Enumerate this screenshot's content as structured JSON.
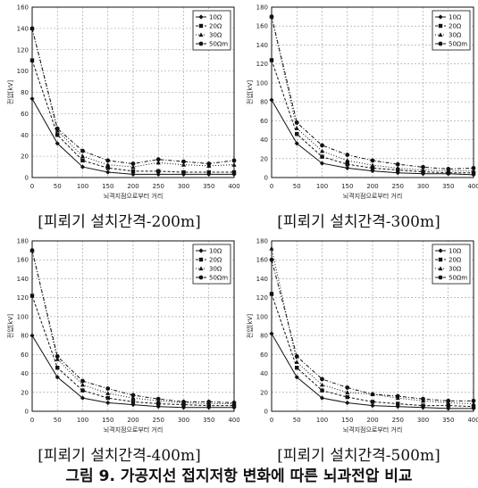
{
  "figure_caption": "그림 9. 가공지선 접지저항 변화에 따른 뇌과전압 비교",
  "chart_data": [
    {
      "type": "line",
      "title": "[피뢰기 설치간격-200m]",
      "xlabel": "뇌격지점으로부터 거리",
      "ylabel": "전압[kV]",
      "x": [
        0,
        50,
        100,
        150,
        200,
        250,
        300,
        350,
        400
      ],
      "xlim": [
        0,
        400
      ],
      "ylim": [
        0,
        160
      ],
      "yticks": [
        0,
        20,
        40,
        60,
        80,
        100,
        120,
        140,
        160
      ],
      "grid": true,
      "legend_position": "top-right",
      "series": [
        {
          "name": "10Ω",
          "values": [
            74,
            32,
            10,
            5,
            3,
            3,
            3,
            3,
            3
          ]
        },
        {
          "name": "20Ω",
          "values": [
            110,
            40,
            16,
            9,
            6,
            6,
            5,
            5,
            5
          ]
        },
        {
          "name": "30Ω",
          "values": [
            140,
            44,
            20,
            12,
            10,
            14,
            12,
            11,
            12
          ]
        },
        {
          "name": "50Ωm",
          "values": [
            140,
            46,
            25,
            16,
            13,
            17,
            15,
            13,
            16
          ]
        }
      ]
    },
    {
      "type": "line",
      "title": "[피뢰기 설치간격-300m]",
      "xlabel": "뇌격지점으로부터 거리",
      "ylabel": "전압[kV]",
      "x": [
        0,
        50,
        100,
        150,
        200,
        250,
        300,
        350,
        400
      ],
      "xlim": [
        0,
        400
      ],
      "ylim": [
        0,
        180
      ],
      "yticks": [
        0,
        20,
        40,
        60,
        80,
        100,
        120,
        140,
        160,
        180
      ],
      "grid": true,
      "legend_position": "top-right",
      "series": [
        {
          "name": "10Ω",
          "values": [
            82,
            36,
            15,
            10,
            7,
            5,
            4,
            4,
            3
          ]
        },
        {
          "name": "20Ω",
          "values": [
            124,
            46,
            22,
            14,
            10,
            8,
            6,
            5,
            5
          ]
        },
        {
          "name": "30Ω",
          "values": [
            170,
            52,
            28,
            18,
            13,
            10,
            8,
            7,
            7
          ]
        },
        {
          "name": "50Ωm",
          "values": [
            170,
            58,
            34,
            24,
            18,
            14,
            11,
            9,
            10
          ]
        }
      ]
    },
    {
      "type": "line",
      "title": "[피뢰기 설치간격-400m]",
      "xlabel": "뇌격지점으로부터 거리",
      "ylabel": "전압[kV]",
      "x": [
        0,
        50,
        100,
        150,
        200,
        250,
        300,
        350,
        400
      ],
      "xlim": [
        0,
        400
      ],
      "ylim": [
        0,
        180
      ],
      "yticks": [
        0,
        20,
        40,
        60,
        80,
        100,
        120,
        140,
        160,
        180
      ],
      "grid": true,
      "legend_position": "top-right",
      "series": [
        {
          "name": "10Ω",
          "values": [
            80,
            36,
            14,
            9,
            7,
            5,
            4,
            4,
            4
          ]
        },
        {
          "name": "20Ω",
          "values": [
            122,
            46,
            22,
            14,
            10,
            8,
            7,
            6,
            6
          ]
        },
        {
          "name": "30Ω",
          "values": [
            170,
            55,
            28,
            19,
            14,
            11,
            9,
            8,
            8
          ]
        },
        {
          "name": "50Ωm",
          "values": [
            170,
            58,
            32,
            24,
            17,
            13,
            10,
            10,
            9
          ]
        }
      ]
    },
    {
      "type": "line",
      "title": "[피뢰기 설치간격-500m]",
      "xlabel": "뇌격지점으로부터 거리",
      "ylabel": "전압[kV]",
      "x": [
        0,
        50,
        100,
        150,
        200,
        250,
        300,
        350,
        400
      ],
      "xlim": [
        0,
        400
      ],
      "ylim": [
        0,
        180
      ],
      "yticks": [
        0,
        20,
        40,
        60,
        80,
        100,
        120,
        140,
        160,
        180
      ],
      "grid": true,
      "legend_position": "top-right",
      "series": [
        {
          "name": "10Ω",
          "values": [
            82,
            36,
            14,
            9,
            6,
            5,
            4,
            3,
            3
          ]
        },
        {
          "name": "20Ω",
          "values": [
            124,
            46,
            22,
            15,
            10,
            8,
            6,
            6,
            5
          ]
        },
        {
          "name": "30Ω",
          "values": [
            172,
            52,
            28,
            20,
            18,
            14,
            11,
            9,
            8
          ]
        },
        {
          "name": "50Ωm",
          "values": [
            160,
            58,
            34,
            25,
            18,
            16,
            13,
            11,
            11
          ]
        }
      ]
    }
  ],
  "styles": {
    "line_color": "#111111",
    "grid_color": "#9a9a9a",
    "series_markers": [
      "diamond",
      "square",
      "triangle",
      "circle"
    ],
    "series_dash": [
      "",
      "3,2",
      "1,2",
      "4,2,1,2"
    ]
  }
}
